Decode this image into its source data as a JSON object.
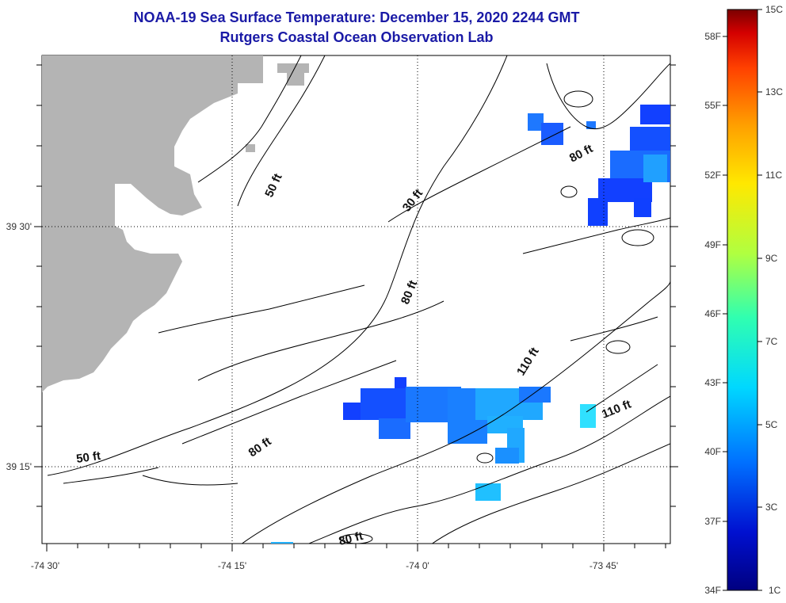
{
  "header": {
    "title": "NOAA-19 Sea Surface Temperature:  December 15, 2020 2244 GMT",
    "subtitle": "Rutgers Coastal Ocean Observation Lab"
  },
  "axes": {
    "x_ticks": [
      "-74 30'",
      "-74 15'",
      "-74 0'",
      "-73 45'"
    ],
    "y_ticks": [
      "39 30'",
      "39 15'"
    ]
  },
  "contours": [
    "50 ft",
    "30 ft",
    "80 ft",
    "80 ft",
    "110 ft",
    "110 ft",
    "50 ft",
    "80 ft",
    "80 ft"
  ],
  "colorbar": {
    "celsius": [
      "15C",
      "13C",
      "11C",
      "9C",
      "7C",
      "5C",
      "3C",
      "1C"
    ],
    "fahrenheit": [
      "58F",
      "55F",
      "52F",
      "49F",
      "46F",
      "43F",
      "40F",
      "37F",
      "34F"
    ],
    "colors": [
      "#7a0000",
      "#d40000",
      "#ff4000",
      "#ffa000",
      "#ffe800",
      "#b0ff40",
      "#30ffb0",
      "#00d8ff",
      "#0070ff",
      "#0010d0",
      "#000080"
    ]
  },
  "colors": {
    "land": "#b4b4b4",
    "sst_cold": "#1040ff",
    "sst_mid": "#00a0ff",
    "sst_warm": "#00d8ff",
    "title": "#1a1aa6"
  }
}
